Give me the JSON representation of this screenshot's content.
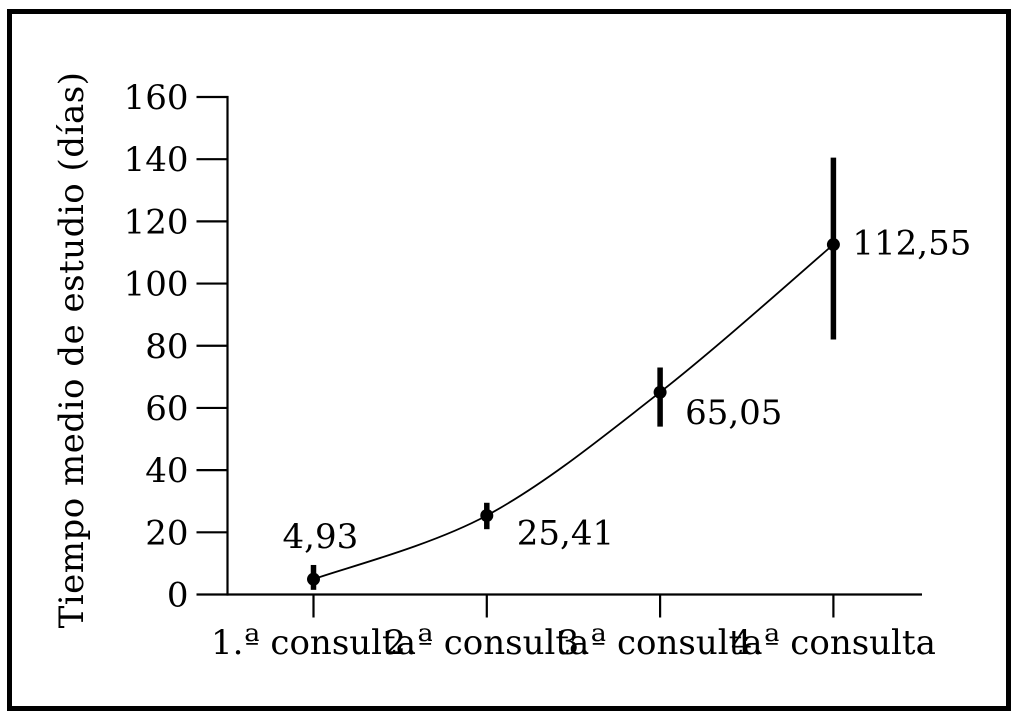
{
  "figure": {
    "background": "#ffffff",
    "ink_color": "#000000",
    "frame_color": "#000000"
  },
  "chart_data": {
    "type": "line",
    "title": "",
    "xlabel": "",
    "ylabel": "Tiempo medio de estudio (días)",
    "categories": [
      "1.ª consulta",
      "2.ª consulta",
      "3.ª consulta",
      "4.ª consulta"
    ],
    "series": [
      {
        "name": "Tiempo medio de estudio",
        "values": [
          4.93,
          25.41,
          65.05,
          112.55
        ],
        "value_labels": [
          "4,93",
          "25,41",
          "65,05",
          "112,55"
        ],
        "error_low": [
          1.5,
          21.0,
          54.0,
          82.0
        ],
        "error_high": [
          9.5,
          29.5,
          73.0,
          140.5
        ]
      }
    ],
    "ylim": [
      0,
      160
    ],
    "yticks": [
      0,
      20,
      40,
      60,
      80,
      100,
      120,
      140,
      160
    ],
    "grid": false,
    "legend": "none",
    "marker": "filled-circle",
    "error_bars": true,
    "curve": "smooth"
  }
}
